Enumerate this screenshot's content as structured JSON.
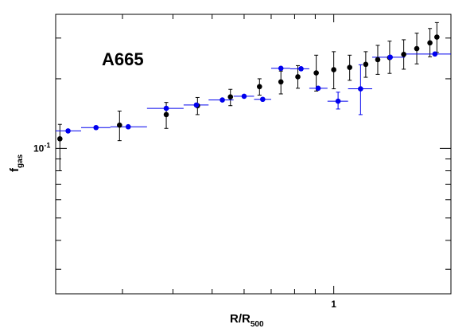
{
  "chart_data": {
    "type": "scatter",
    "title": "",
    "annotation": "A665",
    "xlabel": {
      "main": "R/R",
      "sub": "500"
    },
    "ylabel": {
      "main": "f",
      "sub": "gas"
    },
    "x_scale": "log",
    "y_scale": "log",
    "xlim": [
      0.205,
      1.95
    ],
    "ylim": [
      0.0235,
      0.38
    ],
    "x_tick_labels": [
      {
        "value": 1,
        "label": "1"
      }
    ],
    "y_tick_labels": [
      {
        "value": 0.1,
        "label": "10",
        "exponent": "-1"
      }
    ],
    "grid": false,
    "legend": "none",
    "colors": {
      "series_black": "#000000",
      "series_blue": "#0000ee",
      "axis": "#000000"
    },
    "series": [
      {
        "color": "#000000",
        "points": [
          {
            "x": 0.21,
            "y": 0.11,
            "yerr": [
              0.08,
              0.127
            ]
          },
          {
            "x": 0.295,
            "y": 0.126,
            "yerr": [
              0.108,
              0.145
            ]
          },
          {
            "x": 0.385,
            "y": 0.14,
            "yerr": [
              0.122,
              0.158
            ]
          },
          {
            "x": 0.46,
            "y": 0.153,
            "yerr": [
              0.14,
              0.166
            ]
          },
          {
            "x": 0.555,
            "y": 0.167,
            "yerr": [
              0.153,
              0.18
            ]
          },
          {
            "x": 0.655,
            "y": 0.185,
            "yerr": [
              0.17,
              0.2
            ]
          },
          {
            "x": 0.74,
            "y": 0.194,
            "yerr": [
              0.172,
              0.216
            ]
          },
          {
            "x": 0.815,
            "y": 0.204,
            "yerr": [
              0.182,
              0.228
            ]
          },
          {
            "x": 0.905,
            "y": 0.212,
            "yerr": [
              0.177,
              0.253
            ]
          },
          {
            "x": 1.0,
            "y": 0.219,
            "yerr": [
              0.181,
              0.262
            ]
          },
          {
            "x": 1.095,
            "y": 0.224,
            "yerr": [
              0.197,
              0.253
            ]
          },
          {
            "x": 1.2,
            "y": 0.231,
            "yerr": [
              0.203,
              0.262
            ]
          },
          {
            "x": 1.285,
            "y": 0.242,
            "yerr": [
              0.209,
              0.279
            ]
          },
          {
            "x": 1.375,
            "y": 0.247,
            "yerr": [
              0.211,
              0.291
            ]
          },
          {
            "x": 1.49,
            "y": 0.255,
            "yerr": [
              0.22,
              0.295
            ]
          },
          {
            "x": 1.605,
            "y": 0.27,
            "yerr": [
              0.232,
              0.315
            ]
          },
          {
            "x": 1.73,
            "y": 0.286,
            "yerr": [
              0.249,
              0.33
            ]
          },
          {
            "x": 1.8,
            "y": 0.303,
            "yerr": [
              0.26,
              0.35
            ]
          }
        ]
      },
      {
        "color": "#0000ee",
        "points": [
          {
            "x": 0.22,
            "y": 0.119,
            "xerr": [
              0.205,
              0.237
            ]
          },
          {
            "x": 0.258,
            "y": 0.123,
            "xerr": [
              0.237,
              0.28
            ]
          },
          {
            "x": 0.31,
            "y": 0.124,
            "xerr": [
              0.28,
              0.345
            ]
          },
          {
            "x": 0.385,
            "y": 0.149,
            "xerr": [
              0.345,
              0.425
            ]
          },
          {
            "x": 0.457,
            "y": 0.154,
            "xerr": [
              0.425,
              0.49
            ]
          },
          {
            "x": 0.53,
            "y": 0.162,
            "xerr": [
              0.49,
              0.565
            ]
          },
          {
            "x": 0.6,
            "y": 0.168,
            "xerr": [
              0.565,
              0.635
            ]
          },
          {
            "x": 0.667,
            "y": 0.163,
            "xerr": [
              0.635,
              0.7
            ]
          },
          {
            "x": 0.74,
            "y": 0.222,
            "xerr": [
              0.7,
              0.78
            ]
          },
          {
            "x": 0.83,
            "y": 0.221,
            "xerr": [
              0.78,
              0.87
            ]
          },
          {
            "x": 0.915,
            "y": 0.182,
            "xerr": [
              0.87,
              0.965
            ]
          },
          {
            "x": 1.025,
            "y": 0.16,
            "xerr": [
              0.965,
              1.085
            ],
            "yerr": [
              0.148,
              0.175
            ]
          },
          {
            "x": 1.165,
            "y": 0.181,
            "xerr": [
              1.085,
              1.245
            ],
            "yerr": [
              0.14,
              0.23
            ]
          },
          {
            "x": 1.38,
            "y": 0.248,
            "xerr": [
              1.245,
              1.5
            ]
          },
          {
            "x": 1.78,
            "y": 0.256,
            "xerr": [
              1.5,
              1.95
            ]
          }
        ]
      }
    ]
  }
}
